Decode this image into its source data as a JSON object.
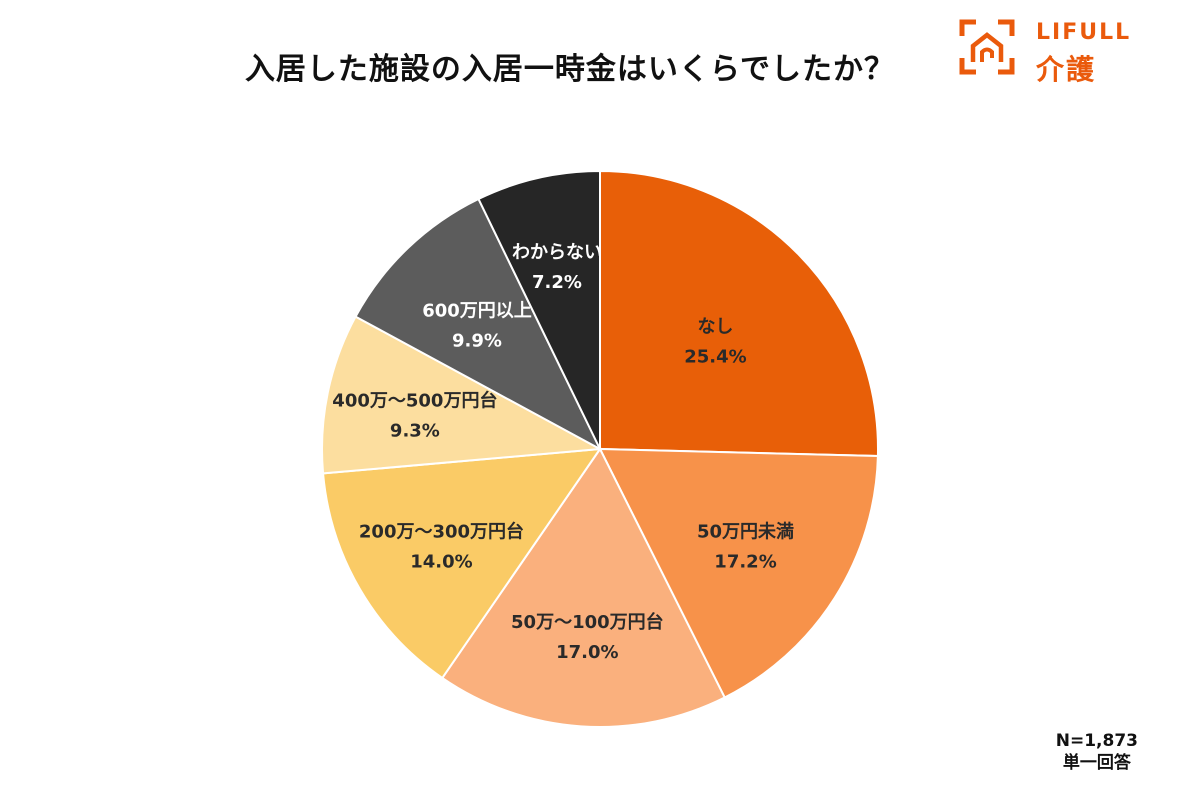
{
  "title": "入居した施設の入居一時金はいくらでしたか？",
  "logo": {
    "brand": "LIFULL",
    "product": "介護",
    "color": "#EA5A0C"
  },
  "note": {
    "sample": "N=1,873",
    "answer_type": "単一回答"
  },
  "chart_data": {
    "type": "pie",
    "title": "入居した施設の入居一時金はいくらでしたか？",
    "start": "12 o'clock",
    "direction": "clockwise",
    "slices": [
      {
        "label": "なし",
        "value": 25.4,
        "value_label": "25.4%",
        "color": "#E85F08",
        "text_color": "#2a2a2a"
      },
      {
        "label": "50万円未満",
        "value": 17.2,
        "value_label": "17.2%",
        "color": "#F7924A",
        "text_color": "#2a2a2a"
      },
      {
        "label": "50万～100万円台",
        "value": 17.0,
        "value_label": "17.0%",
        "color": "#FAB07D",
        "text_color": "#2a2a2a"
      },
      {
        "label": "200万～300万円台",
        "value": 14.0,
        "value_label": "14.0%",
        "color": "#FACB66",
        "text_color": "#2a2a2a"
      },
      {
        "label": "400万～500万円台",
        "value": 9.3,
        "value_label": "9.3%",
        "color": "#FCDE9F",
        "text_color": "#2a2a2a"
      },
      {
        "label": "600万円以上",
        "value": 9.9,
        "value_label": "9.9%",
        "color": "#5C5C5C",
        "text_color": "#ffffff"
      },
      {
        "label": "わからない",
        "value": 7.2,
        "value_label": "7.2%",
        "color": "#262626",
        "text_color": "#ffffff"
      }
    ]
  }
}
